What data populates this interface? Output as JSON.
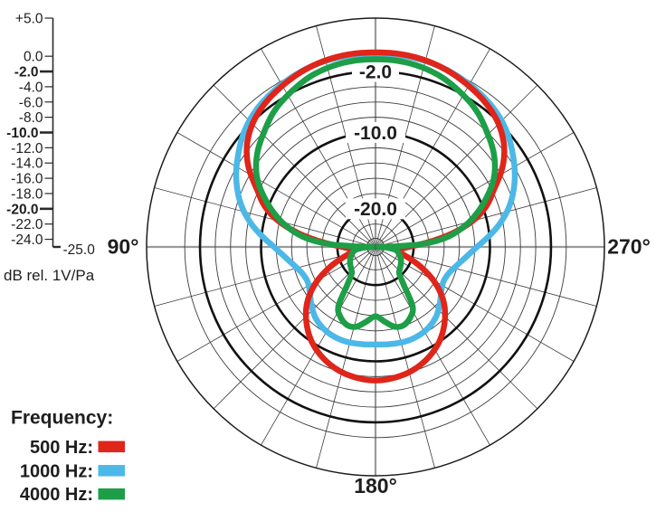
{
  "chart_data": {
    "type": "polar_line",
    "units_label": "dB rel. 1V/Pa",
    "legend_title": "Frequency:",
    "radial_axis": {
      "min": -25,
      "max": 5,
      "ticks": [
        {
          "v": 5,
          "label": "+5.0",
          "major": false
        },
        {
          "v": 0,
          "label": "0.0",
          "major": false
        },
        {
          "v": -2,
          "label": "-2.0",
          "major": true
        },
        {
          "v": -4,
          "label": "-4.0",
          "major": false
        },
        {
          "v": -6,
          "label": "-6.0",
          "major": false
        },
        {
          "v": -8,
          "label": "-8.0",
          "major": false
        },
        {
          "v": -10,
          "label": "-10.0",
          "major": true
        },
        {
          "v": -12,
          "label": "-12.0",
          "major": false
        },
        {
          "v": -14,
          "label": "-14.0",
          "major": false
        },
        {
          "v": -16,
          "label": "-16.0",
          "major": false
        },
        {
          "v": -18,
          "label": "-18.0",
          "major": false
        },
        {
          "v": -20,
          "label": "-20.0",
          "major": true
        },
        {
          "v": -22,
          "label": "-22.0",
          "major": false
        },
        {
          "v": -24,
          "label": "-24.0",
          "major": false
        }
      ],
      "end_tick": {
        "v": -25,
        "label": "-25.0"
      }
    },
    "grid": {
      "spoke_step_deg": 15,
      "rings_minor": [
        0,
        -4,
        -6,
        -8,
        -12,
        -14,
        -16,
        -18,
        -22,
        -24
      ],
      "rings_major": [
        -2,
        -10,
        -20
      ],
      "outer_ring": 5
    },
    "ring_labels": [
      {
        "v": -2,
        "label": "-2.0"
      },
      {
        "v": -10,
        "label": "-10.0"
      },
      {
        "v": -20,
        "label": "-20.0"
      }
    ],
    "angle_labels": [
      {
        "angle": 90,
        "label": "90°"
      },
      {
        "angle": 180,
        "label": "180°"
      },
      {
        "angle": 270,
        "label": "270°"
      }
    ],
    "series": [
      {
        "name": "1000 Hz:",
        "color": "#4cb8e7",
        "symmetric": true,
        "points": [
          [
            0,
            0.35
          ],
          [
            10,
            0.3
          ],
          [
            20,
            0.1
          ],
          [
            30,
            -0.4
          ],
          [
            40,
            -1.1
          ],
          [
            48,
            -2.0
          ],
          [
            56,
            -3.3
          ],
          [
            64,
            -4.7
          ],
          [
            72,
            -6.4
          ],
          [
            79,
            -8.3
          ],
          [
            85,
            -10.2
          ],
          [
            90,
            -11.7
          ],
          [
            96,
            -13.0
          ],
          [
            103,
            -14.1
          ],
          [
            110,
            -14.8
          ],
          [
            117,
            -15.0
          ],
          [
            124,
            -14.6
          ],
          [
            132,
            -13.7
          ],
          [
            140,
            -12.8
          ],
          [
            150,
            -12.2
          ],
          [
            160,
            -12.0
          ],
          [
            170,
            -12.1
          ],
          [
            180,
            -12.2
          ]
        ]
      },
      {
        "name": "500 Hz:",
        "color": "#e0251a",
        "symmetric": true,
        "points": [
          [
            0,
            0.5
          ],
          [
            10,
            0.45
          ],
          [
            20,
            0.1
          ],
          [
            30,
            -0.6
          ],
          [
            38,
            -1.3
          ],
          [
            45,
            -2.2
          ],
          [
            52,
            -3.6
          ],
          [
            58,
            -5.4
          ],
          [
            64,
            -7.7
          ],
          [
            70,
            -9.6
          ],
          [
            75,
            -11.8
          ],
          [
            80,
            -14.8
          ],
          [
            84,
            -17.5
          ],
          [
            88,
            -19.8
          ],
          [
            92,
            -21.2
          ],
          [
            97,
            -21.9
          ],
          [
            102,
            -21.9
          ],
          [
            108,
            -20.5
          ],
          [
            114,
            -18.4
          ],
          [
            121,
            -15.9
          ],
          [
            129,
            -13.5
          ],
          [
            137,
            -11.7
          ],
          [
            145,
            -10.2
          ],
          [
            153,
            -9.1
          ],
          [
            162,
            -8.2
          ],
          [
            171,
            -7.7
          ],
          [
            180,
            -7.5
          ]
        ]
      },
      {
        "name": "4000 Hz:",
        "color": "#1d9e47",
        "symmetric": true,
        "points": [
          [
            0,
            -0.4
          ],
          [
            10,
            -0.5
          ],
          [
            20,
            -1.0
          ],
          [
            28,
            -1.8
          ],
          [
            36,
            -2.7
          ],
          [
            44,
            -4.0
          ],
          [
            52,
            -5.3
          ],
          [
            60,
            -7.1
          ],
          [
            67,
            -9.4
          ],
          [
            73,
            -11.5
          ],
          [
            78,
            -13.5
          ],
          [
            83,
            -16.0
          ],
          [
            87,
            -19.5
          ],
          [
            90,
            -24.6
          ],
          [
            94,
            -23.0
          ],
          [
            100,
            -22.2
          ],
          [
            108,
            -21.7
          ],
          [
            116,
            -21.3
          ],
          [
            124,
            -21.0
          ],
          [
            132,
            -20.7
          ],
          [
            139,
            -20.2
          ],
          [
            144,
            -18.5
          ],
          [
            148,
            -15.8
          ],
          [
            153,
            -14.8
          ],
          [
            160,
            -14.1
          ],
          [
            166,
            -14.2
          ],
          [
            172,
            -15.0
          ],
          [
            180,
            -15.9
          ]
        ]
      }
    ],
    "legend": [
      {
        "label": "500 Hz:",
        "color": "#e0251a"
      },
      {
        "label": "1000 Hz:",
        "color": "#4cb8e7"
      },
      {
        "label": "4000 Hz:",
        "color": "#1d9e47"
      }
    ],
    "colors": {
      "grid_minor": "#3c3c3c",
      "grid_major": "#111111",
      "grid_outer": "#1c1c1c",
      "main_axes": "#9a9a9a",
      "text": "#1e1e1e"
    }
  }
}
